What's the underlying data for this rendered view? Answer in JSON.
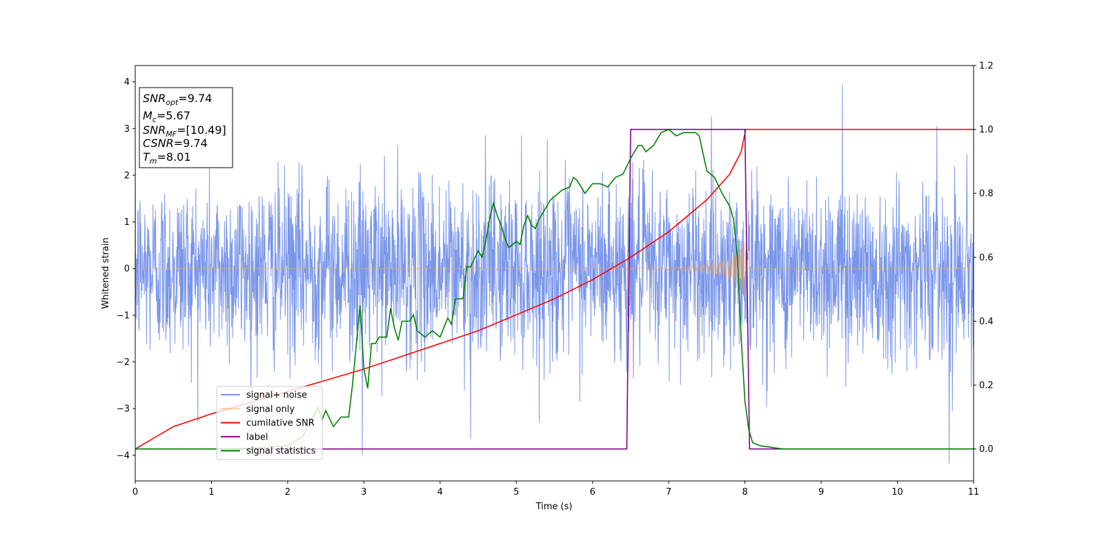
{
  "chart_data": {
    "type": "line",
    "xlabel": "Time (s)",
    "ylabel": "Whitened strain",
    "xlim": [
      0,
      11
    ],
    "ylim": [
      -4.55,
      4.35
    ],
    "y2lim": [
      -0.1,
      1.2
    ],
    "x_ticks": [
      0,
      1,
      2,
      3,
      4,
      5,
      6,
      7,
      8,
      9,
      10,
      11
    ],
    "y_ticks": [
      -4,
      -3,
      -2,
      -1,
      0,
      1,
      2,
      3,
      4
    ],
    "y2_ticks": [
      "0.0",
      "0.2",
      "0.4",
      "0.6",
      "0.8",
      "1.0",
      "1.2"
    ],
    "grid": false,
    "legend_position": "lower-left",
    "info_box": {
      "lines": [
        {
          "sym": "SNR",
          "sub": "opt",
          "val": "=9.74"
        },
        {
          "sym": "M",
          "sub": "c",
          "val": "=5.67"
        },
        {
          "sym": "SNR",
          "sub": "MF",
          "val": "=[10.49]"
        },
        {
          "sym": "CSNR",
          "sub": "",
          "val": "=9.74"
        },
        {
          "sym": "T",
          "sub": "m",
          "val": "=8.01"
        }
      ]
    },
    "series": [
      {
        "name": "signal+ noise",
        "color": "#4169e1",
        "axis": "left",
        "kind": "noise",
        "sigma": 0.95,
        "x_range": [
          0,
          11
        ],
        "peaks": [
          {
            "x": 9.28,
            "y": 3.95
          },
          {
            "x": 10.68,
            "y": -4.18
          },
          {
            "x": 2.98,
            "y": -4.0
          },
          {
            "x": 4.4,
            "y": -3.65
          }
        ]
      },
      {
        "name": "signal only",
        "color": "#ffa54f",
        "axis": "left",
        "kind": "chirp",
        "merger_time": 8.01,
        "amplitude_start": 0.04,
        "amplitude_peak": 0.7
      },
      {
        "name": "cumilative SNR",
        "color": "#ff0000",
        "axis": "right",
        "x": [
          0,
          0.5,
          1,
          1.5,
          2,
          2.5,
          3,
          3.5,
          4,
          4.5,
          5,
          5.5,
          6,
          6.5,
          7,
          7.5,
          7.8,
          7.95,
          8.01,
          8.1,
          11
        ],
        "y": [
          0.0,
          0.07,
          0.11,
          0.145,
          0.18,
          0.215,
          0.25,
          0.29,
          0.33,
          0.37,
          0.42,
          0.47,
          0.53,
          0.6,
          0.68,
          0.78,
          0.86,
          0.93,
          1.0,
          1.0,
          1.0
        ]
      },
      {
        "name": "label",
        "color": "#800080",
        "axis": "right",
        "x": [
          0,
          6.45,
          6.5,
          8.0,
          8.06,
          11
        ],
        "y": [
          0,
          0,
          1,
          1,
          0,
          0
        ]
      },
      {
        "name": "signal statistics",
        "color": "#008000",
        "axis": "right",
        "x": [
          0,
          0.5,
          1,
          1.5,
          2,
          2.2,
          2.4,
          2.45,
          2.5,
          2.6,
          2.7,
          2.8,
          2.85,
          2.95,
          3.0,
          3.05,
          3.1,
          3.15,
          3.2,
          3.3,
          3.35,
          3.4,
          3.45,
          3.5,
          3.6,
          3.65,
          3.7,
          3.8,
          3.9,
          4.0,
          4.1,
          4.15,
          4.2,
          4.3,
          4.35,
          4.4,
          4.5,
          4.55,
          4.6,
          4.65,
          4.7,
          4.75,
          4.8,
          4.85,
          4.9,
          5.0,
          5.05,
          5.1,
          5.15,
          5.2,
          5.25,
          5.3,
          5.4,
          5.45,
          5.5,
          5.6,
          5.7,
          5.75,
          5.8,
          5.9,
          6.0,
          6.1,
          6.2,
          6.3,
          6.4,
          6.5,
          6.55,
          6.6,
          6.65,
          6.7,
          6.8,
          6.9,
          7.0,
          7.1,
          7.2,
          7.3,
          7.35,
          7.4,
          7.5,
          7.6,
          7.7,
          7.8,
          7.85,
          7.9,
          7.95,
          8.0,
          8.05,
          8.1,
          8.2,
          8.5,
          11
        ],
        "y": [
          0.0,
          0.0,
          0.0,
          0.002,
          0.01,
          0.04,
          0.13,
          0.09,
          0.12,
          0.07,
          0.1,
          0.1,
          0.2,
          0.45,
          0.25,
          0.19,
          0.33,
          0.33,
          0.35,
          0.35,
          0.44,
          0.38,
          0.34,
          0.4,
          0.4,
          0.42,
          0.37,
          0.35,
          0.37,
          0.35,
          0.41,
          0.39,
          0.47,
          0.47,
          0.57,
          0.57,
          0.62,
          0.6,
          0.65,
          0.72,
          0.77,
          0.73,
          0.7,
          0.66,
          0.63,
          0.65,
          0.64,
          0.7,
          0.73,
          0.7,
          0.69,
          0.72,
          0.76,
          0.78,
          0.79,
          0.81,
          0.82,
          0.85,
          0.84,
          0.8,
          0.83,
          0.83,
          0.82,
          0.85,
          0.86,
          0.91,
          0.93,
          0.95,
          0.95,
          0.93,
          0.95,
          0.99,
          1.0,
          0.98,
          0.99,
          0.99,
          0.99,
          0.98,
          0.87,
          0.85,
          0.8,
          0.76,
          0.72,
          0.6,
          0.35,
          0.15,
          0.06,
          0.02,
          0.01,
          0.0,
          0.0
        ]
      }
    ]
  }
}
